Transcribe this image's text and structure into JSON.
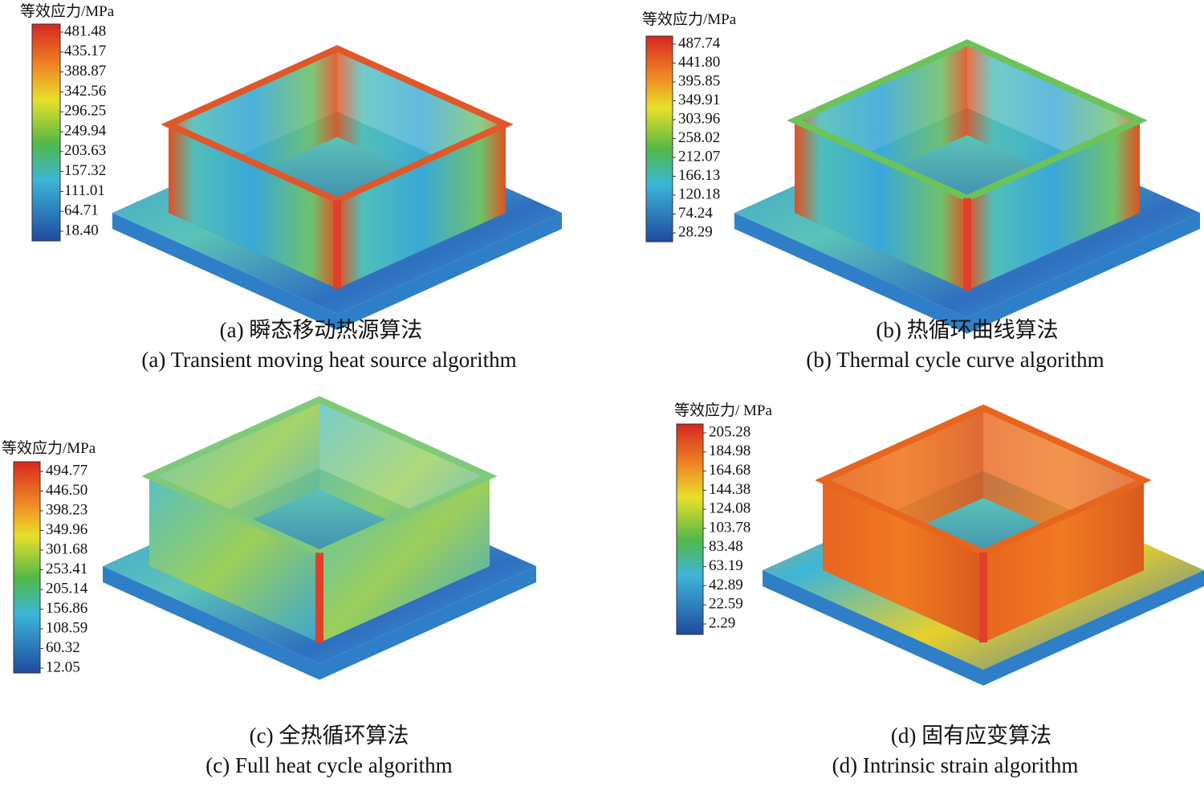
{
  "panels": [
    {
      "legend_title": "等效应力/MPa",
      "legend_labels": [
        "481.48",
        "435.17",
        "388.87",
        "342.56",
        "296.25",
        "249.94",
        "203.63",
        "157.32",
        "111.01",
        "64.71",
        "18.40"
      ],
      "caption_cn": "(a) 瞬态移动热源算法",
      "caption_en": "(a) Transient moving heat source algorithm"
    },
    {
      "legend_title": "等效应力/MPa",
      "legend_labels": [
        "487.74",
        "441.80",
        "395.85",
        "349.91",
        "303.96",
        "258.02",
        "212.07",
        "166.13",
        "120.18",
        "74.24",
        "28.29"
      ],
      "caption_cn": "(b) 热循环曲线算法",
      "caption_en": "(b) Thermal cycle curve algorithm"
    },
    {
      "legend_title": "等效应力/MPa",
      "legend_labels": [
        "494.77",
        "446.50",
        "398.23",
        "349.96",
        "301.68",
        "253.41",
        "205.14",
        "156.86",
        "108.59",
        "60.32",
        "12.05"
      ],
      "caption_cn": "(c) 全热循环算法",
      "caption_en": "(c) Full heat cycle algorithm"
    },
    {
      "legend_title": "等效应力/ MPa",
      "legend_labels": [
        "205.28",
        "184.98",
        "164.68",
        "144.38",
        "124.08",
        "103.78",
        "83.48",
        "63.19",
        "42.89",
        "22.59",
        "2.29"
      ],
      "caption_cn": "(d) 固有应变算法",
      "caption_en": "(d) Intrinsic strain algorithm"
    }
  ]
}
